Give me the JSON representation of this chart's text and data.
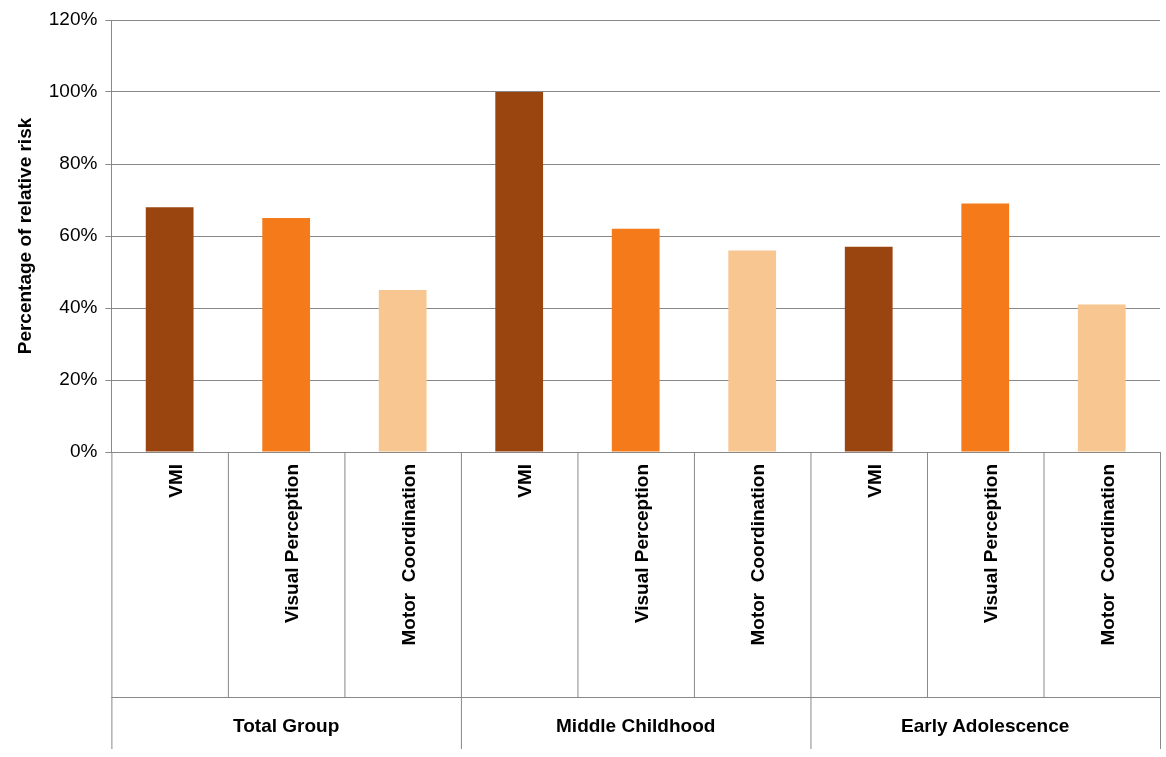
{
  "chart_data": {
    "type": "bar",
    "ylabel": "Percentage of relative risk",
    "categories": [
      "VMI",
      "Visual Perception",
      "Motor  Coordination",
      "VMI",
      "Visual Perception",
      "Motor  Coordination",
      "VMI",
      "Visual Perception",
      "Motor  Coordination"
    ],
    "values": [
      68,
      65,
      45,
      100,
      62,
      56,
      57,
      69,
      41
    ],
    "colors": [
      "#9a4410",
      "#f47a1a",
      "#f8c690",
      "#9a4410",
      "#f47a1a",
      "#f8c690",
      "#9a4410",
      "#f47a1a",
      "#f8c690"
    ],
    "annotations": [
      "Total Group",
      "Middle Childhood",
      "Early Adolescence"
    ],
    "ylim": [
      0,
      120
    ],
    "yticks": [
      {
        "value": 0,
        "label": "0%"
      },
      {
        "value": 20,
        "label": "20%"
      },
      {
        "value": 40,
        "label": "40%"
      },
      {
        "value": 60,
        "label": "60%"
      },
      {
        "value": 80,
        "label": "80%"
      },
      {
        "value": 100,
        "label": "100%"
      },
      {
        "value": 120,
        "label": "120%"
      }
    ],
    "grid": "y",
    "legend": false
  }
}
